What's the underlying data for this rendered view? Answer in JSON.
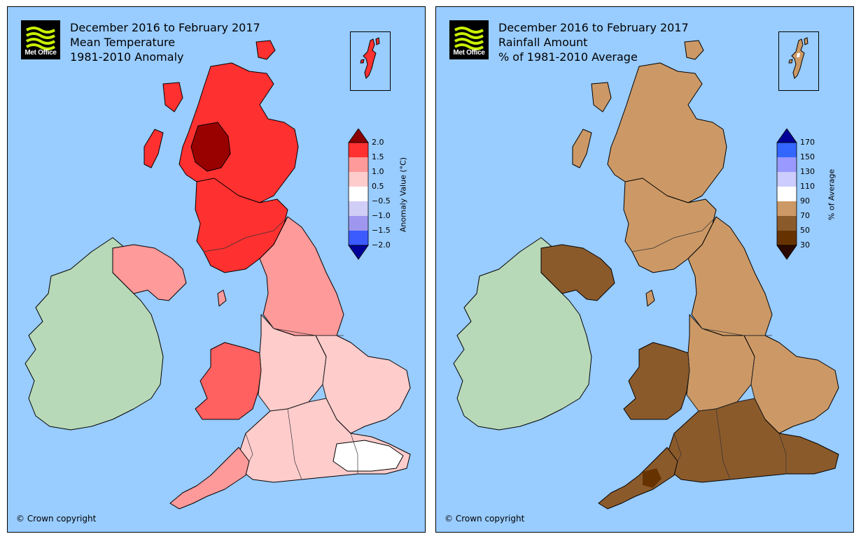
{
  "panels": [
    {
      "id": "temperature",
      "logo_text": "Met Office",
      "title_lines": [
        "December 2016 to February 2017",
        "Mean Temperature",
        "1981-2010 Anomaly"
      ],
      "colorbar": {
        "title": "Anomaly Value (°C)",
        "tick_labels": [
          "2.0",
          "1.5",
          "1.0",
          "0.5",
          "−0.5",
          "−1.0",
          "−1.5",
          "−2.0"
        ],
        "top_arrow_color": "#8b0000",
        "bottom_arrow_color": "#000099",
        "colors": [
          "#ff3030",
          "#ff9a9a",
          "#ffcccc",
          "#ffffff",
          "#d0cdf6",
          "#9f97ef",
          "#3b5bff"
        ]
      },
      "copyright": "© Crown copyright"
    },
    {
      "id": "rainfall",
      "logo_text": "Met Office",
      "title_lines": [
        "December 2016 to February 2017",
        "Rainfall Amount",
        "% of 1981-2010 Average"
      ],
      "colorbar": {
        "title": "% of Average",
        "tick_labels": [
          "170",
          "150",
          "130",
          "110",
          "90",
          "70",
          "50",
          "30"
        ],
        "top_arrow_color": "#000099",
        "bottom_arrow_color": "#2a0a00",
        "colors": [
          "#3366ff",
          "#9999ff",
          "#ccccff",
          "#ffffff",
          "#cc9966",
          "#8b5a2b",
          "#663300"
        ]
      },
      "copyright": "© Crown copyright"
    }
  ],
  "map_colors": {
    "sea": "#99ccff",
    "ireland_land": "#b8d9b8",
    "temperature": {
      "scotland_highlands": "#ff3030",
      "scotland_hotspot": "#990000",
      "scotland_lowlands": "#ff3030",
      "northern_ireland": "#ff9a9a",
      "northern_england": "#ff9a9a",
      "wales": "#ff6060",
      "midlands": "#ffcccc",
      "east_england": "#ffcccc",
      "southwest": "#ff9a9a",
      "south_england": "#ffcccc",
      "southeast_white": "#ffffff"
    },
    "rainfall": {
      "scotland": "#cc9966",
      "northern_ireland": "#8b5a2b",
      "northern_england": "#cc9966",
      "wales": "#8b5a2b",
      "midlands": "#cc9966",
      "east_england": "#cc9966",
      "southwest": "#8b5a2b",
      "south_england": "#8b5a2b",
      "dartmoor": "#663300"
    }
  }
}
